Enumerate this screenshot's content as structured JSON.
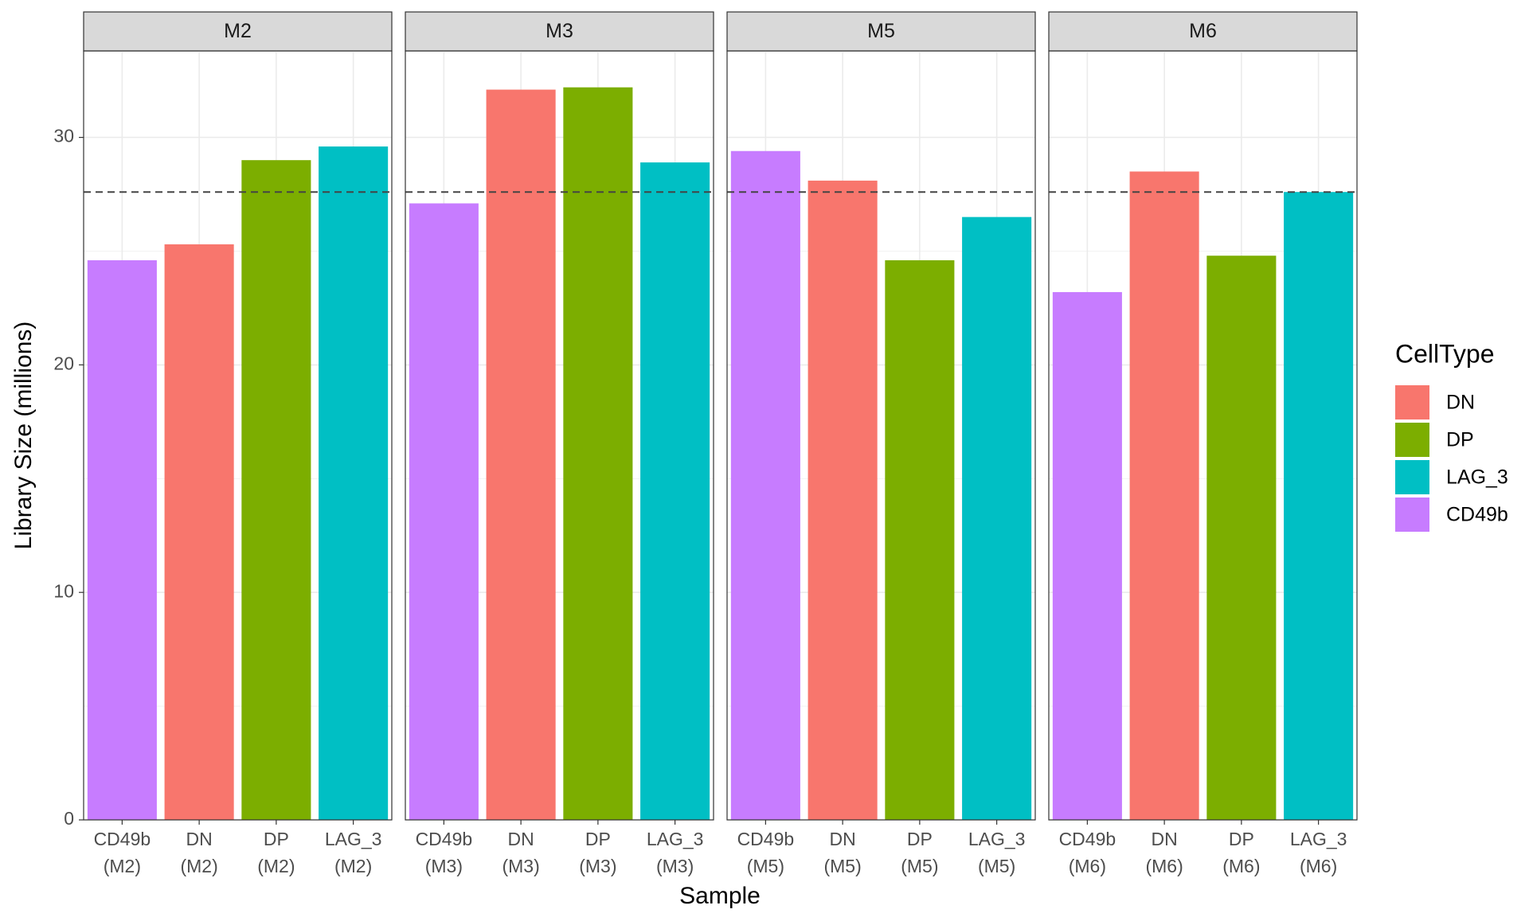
{
  "chart_data": {
    "type": "bar",
    "x_label": "Sample",
    "y_label": "Library Size (millions)",
    "ylim": [
      0,
      33.8
    ],
    "yticks": [
      0,
      10,
      20,
      30
    ],
    "minor_yticks": [
      5,
      15,
      25
    ],
    "grid": true,
    "reference_line": 27.6,
    "facets": [
      {
        "title": "M2",
        "categories": [
          [
            "CD49b",
            "(M2)"
          ],
          [
            "DN",
            "(M2)"
          ],
          [
            "DP",
            "(M2)"
          ],
          [
            "LAG_3",
            "(M2)"
          ]
        ],
        "values": [
          24.6,
          25.3,
          29.0,
          29.6
        ],
        "colors": [
          "#c77cff",
          "#f8766d",
          "#7cae00",
          "#00bfc4"
        ]
      },
      {
        "title": "M3",
        "categories": [
          [
            "CD49b",
            "(M3)"
          ],
          [
            "DN",
            "(M3)"
          ],
          [
            "DP",
            "(M3)"
          ],
          [
            "LAG_3",
            "(M3)"
          ]
        ],
        "values": [
          27.1,
          32.1,
          32.2,
          28.9
        ],
        "colors": [
          "#c77cff",
          "#f8766d",
          "#7cae00",
          "#00bfc4"
        ]
      },
      {
        "title": "M5",
        "categories": [
          [
            "CD49b",
            "(M5)"
          ],
          [
            "DN",
            "(M5)"
          ],
          [
            "DP",
            "(M5)"
          ],
          [
            "LAG_3",
            "(M5)"
          ]
        ],
        "values": [
          29.4,
          28.1,
          24.6,
          26.5
        ],
        "colors": [
          "#c77cff",
          "#f8766d",
          "#7cae00",
          "#00bfc4"
        ]
      },
      {
        "title": "M6",
        "categories": [
          [
            "CD49b",
            "(M6)"
          ],
          [
            "DN",
            "(M6)"
          ],
          [
            "DP",
            "(M6)"
          ],
          [
            "LAG_3",
            "(M6)"
          ]
        ],
        "values": [
          23.2,
          28.5,
          24.8,
          27.6
        ],
        "colors": [
          "#c77cff",
          "#f8766d",
          "#7cae00",
          "#00bfc4"
        ]
      }
    ],
    "legend": {
      "title": "CellType",
      "entries": [
        {
          "name": "DN",
          "color": "#f8766d"
        },
        {
          "name": "DP",
          "color": "#7cae00"
        },
        {
          "name": "LAG_3",
          "color": "#00bfc4"
        },
        {
          "name": "CD49b",
          "color": "#c77cff"
        }
      ]
    }
  }
}
